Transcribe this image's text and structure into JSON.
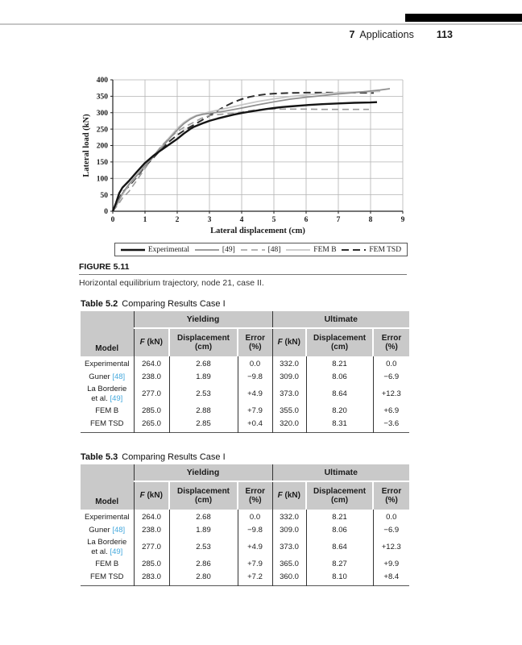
{
  "running_head": {
    "chapter_number": "7",
    "chapter_title": "Applications",
    "page_number": "113"
  },
  "colors": {
    "citation_link": "#45a9dd",
    "table_header_bg": "#c9c9c9",
    "grid_line": "#b3b3b3",
    "axis_line": "#222222"
  },
  "figure": {
    "label": "FIGURE 5.11",
    "caption": "Horizontal equilibrium trajectory, node 21, case II."
  },
  "chart_data": {
    "type": "line",
    "title": "",
    "xlabel": "Lateral displacement (cm)",
    "ylabel": "Lateral load (kN)",
    "xlim": [
      0,
      9
    ],
    "ylim": [
      0,
      400
    ],
    "xticks": [
      0,
      1,
      2,
      3,
      4,
      5,
      6,
      7,
      8,
      9
    ],
    "yticks": [
      0,
      50,
      100,
      150,
      200,
      250,
      300,
      350,
      400
    ],
    "grid": true,
    "legend_position": "bottom",
    "series": [
      {
        "name": "Experimental",
        "color": "#141414",
        "width": 2.4,
        "dash": null,
        "points": [
          [
            0,
            0
          ],
          [
            0.1,
            25
          ],
          [
            0.2,
            55
          ],
          [
            0.3,
            72
          ],
          [
            0.5,
            92
          ],
          [
            0.75,
            120
          ],
          [
            1,
            147
          ],
          [
            1.25,
            168
          ],
          [
            1.5,
            186
          ],
          [
            1.75,
            203
          ],
          [
            2,
            220
          ],
          [
            2.2,
            236
          ],
          [
            2.4,
            250
          ],
          [
            2.5,
            256
          ],
          [
            2.6,
            260
          ],
          [
            2.8,
            268
          ],
          [
            3,
            275
          ],
          [
            3.25,
            282
          ],
          [
            3.5,
            288
          ],
          [
            3.75,
            294
          ],
          [
            4,
            299
          ],
          [
            4.25,
            303
          ],
          [
            4.5,
            307
          ],
          [
            4.75,
            311
          ],
          [
            5,
            314
          ],
          [
            5.25,
            317
          ],
          [
            5.5,
            319
          ],
          [
            6,
            323
          ],
          [
            6.5,
            326
          ],
          [
            7,
            328
          ],
          [
            7.5,
            330
          ],
          [
            8,
            331
          ],
          [
            8.2,
            332
          ]
        ]
      },
      {
        "name": "[49]",
        "color": "#8f8f8f",
        "width": 1.7,
        "dash": null,
        "points": [
          [
            0,
            0
          ],
          [
            0.1,
            15
          ],
          [
            0.3,
            55
          ],
          [
            0.5,
            82
          ],
          [
            0.75,
            110
          ],
          [
            1,
            138
          ],
          [
            1.25,
            165
          ],
          [
            1.5,
            192
          ],
          [
            1.75,
            220
          ],
          [
            2,
            247
          ],
          [
            2.2,
            266
          ],
          [
            2.4,
            280
          ],
          [
            2.6,
            290
          ],
          [
            2.8,
            295
          ],
          [
            3,
            298
          ],
          [
            3.25,
            301
          ],
          [
            3.5,
            305
          ],
          [
            4,
            314
          ],
          [
            4.5,
            324
          ],
          [
            5,
            333
          ],
          [
            5.5,
            341
          ],
          [
            6,
            347
          ],
          [
            6.5,
            352
          ],
          [
            7,
            357
          ],
          [
            7.5,
            361
          ],
          [
            8,
            366
          ],
          [
            8.3,
            369
          ],
          [
            8.6,
            373
          ]
        ]
      },
      {
        "name": "[48]",
        "color": "#9c9c9c",
        "width": 1.6,
        "dash": "8,5",
        "points": [
          [
            0,
            0
          ],
          [
            0.15,
            18
          ],
          [
            0.3,
            40
          ],
          [
            0.5,
            60
          ],
          [
            0.75,
            95
          ],
          [
            1,
            130
          ],
          [
            1.25,
            165
          ],
          [
            1.5,
            198
          ],
          [
            1.75,
            222
          ],
          [
            2,
            242
          ],
          [
            2.25,
            258
          ],
          [
            2.5,
            270
          ],
          [
            2.75,
            283
          ],
          [
            3,
            291
          ],
          [
            3.25,
            294
          ],
          [
            3.5,
            296
          ],
          [
            4,
            302
          ],
          [
            4.25,
            306
          ],
          [
            4.5,
            309
          ],
          [
            4.75,
            311
          ],
          [
            5,
            311
          ],
          [
            5.5,
            311
          ],
          [
            6,
            311
          ],
          [
            6.5,
            310
          ],
          [
            7,
            310
          ],
          [
            7.5,
            310
          ],
          [
            7.95,
            310
          ]
        ]
      },
      {
        "name": "FEM B",
        "color": "#c6c6c6",
        "width": 1.8,
        "dash": null,
        "points": [
          [
            0,
            0
          ],
          [
            0.2,
            35
          ],
          [
            0.5,
            80
          ],
          [
            0.75,
            108
          ],
          [
            1,
            140
          ],
          [
            1.25,
            168
          ],
          [
            1.5,
            196
          ],
          [
            1.75,
            224
          ],
          [
            2,
            252
          ],
          [
            2.2,
            270
          ],
          [
            2.4,
            283
          ],
          [
            2.6,
            292
          ],
          [
            2.8,
            297
          ],
          [
            3,
            302
          ],
          [
            3.5,
            313
          ],
          [
            4,
            324
          ],
          [
            4.5,
            334
          ],
          [
            5,
            342
          ],
          [
            5.5,
            349
          ],
          [
            6,
            354
          ],
          [
            6.5,
            358
          ],
          [
            7,
            361
          ],
          [
            7.5,
            363
          ],
          [
            8,
            364
          ],
          [
            8.3,
            365
          ]
        ]
      },
      {
        "name": "FEM TSD",
        "color": "#2e2e2e",
        "width": 2,
        "dash": "9,5",
        "points": [
          [
            0,
            0
          ],
          [
            0.15,
            30
          ],
          [
            0.3,
            58
          ],
          [
            0.5,
            76
          ],
          [
            0.75,
            105
          ],
          [
            1,
            136
          ],
          [
            1.25,
            162
          ],
          [
            1.5,
            188
          ],
          [
            1.75,
            212
          ],
          [
            2,
            232
          ],
          [
            2.25,
            248
          ],
          [
            2.5,
            262
          ],
          [
            2.75,
            276
          ],
          [
            3,
            291
          ],
          [
            3.25,
            306
          ],
          [
            3.5,
            320
          ],
          [
            3.75,
            332
          ],
          [
            4,
            341
          ],
          [
            4.25,
            348
          ],
          [
            4.5,
            353
          ],
          [
            4.75,
            356
          ],
          [
            5,
            358
          ],
          [
            5.5,
            360
          ],
          [
            6,
            361
          ],
          [
            6.5,
            361
          ],
          [
            7,
            361
          ],
          [
            7.5,
            361
          ],
          [
            8.1,
            360
          ]
        ]
      }
    ]
  },
  "tables": [
    {
      "title_bold": "Table 5.2",
      "title_rest": "Comparing Results Case I",
      "headers": {
        "model": "Model",
        "group1": "Yielding",
        "group2": "Ultimate",
        "f_italic": "F",
        "f_unit": " (kN)",
        "disp": "Displacement (cm)",
        "err": "Error (%)"
      },
      "rows": [
        {
          "model": [
            {
              "t": "Experimental"
            }
          ],
          "values": [
            "264.0",
            "2.68",
            "0.0",
            "332.0",
            "8.21",
            "0.0"
          ]
        },
        {
          "model": [
            {
              "t": "Guner "
            },
            {
              "t": "[48]",
              "ref": true
            }
          ],
          "values": [
            "238.0",
            "1.89",
            "−9.8",
            "309.0",
            "8.06",
            "−6.9"
          ]
        },
        {
          "model": [
            {
              "t": "La Borderie"
            },
            {
              "br": true
            },
            {
              "t": "et al. "
            },
            {
              "t": "[49]",
              "ref": true
            }
          ],
          "values": [
            "277.0",
            "2.53",
            "+4.9",
            "373.0",
            "8.64",
            "+12.3"
          ]
        },
        {
          "model": [
            {
              "t": "FEM B"
            }
          ],
          "values": [
            "285.0",
            "2.88",
            "+7.9",
            "355.0",
            "8.20",
            "+6.9"
          ]
        },
        {
          "model": [
            {
              "t": "FEM TSD"
            }
          ],
          "values": [
            "265.0",
            "2.85",
            "+0.4",
            "320.0",
            "8.31",
            "−3.6"
          ]
        }
      ]
    },
    {
      "title_bold": "Table 5.3",
      "title_rest": "Comparing Results Case I",
      "headers": {
        "model": "Model",
        "group1": "Yielding",
        "group2": "Ultimate",
        "f_italic": "F",
        "f_unit": " (kN)",
        "disp": "Displacement (cm)",
        "err": "Error (%)"
      },
      "rows": [
        {
          "model": [
            {
              "t": "Experimental"
            }
          ],
          "values": [
            "264.0",
            "2.68",
            "0.0",
            "332.0",
            "8.21",
            "0.0"
          ]
        },
        {
          "model": [
            {
              "t": "Guner "
            },
            {
              "t": "[48]",
              "ref": true
            }
          ],
          "values": [
            "238.0",
            "1.89",
            "−9.8",
            "309.0",
            "8.06",
            "−6.9"
          ]
        },
        {
          "model": [
            {
              "t": "La Borderie"
            },
            {
              "br": true
            },
            {
              "t": "et al. "
            },
            {
              "t": "[49]",
              "ref": true
            }
          ],
          "values": [
            "277.0",
            "2.53",
            "+4.9",
            "373.0",
            "8.64",
            "+12.3"
          ]
        },
        {
          "model": [
            {
              "t": "FEM B"
            }
          ],
          "values": [
            "285.0",
            "2.86",
            "+7.9",
            "365.0",
            "8.27",
            "+9.9"
          ]
        },
        {
          "model": [
            {
              "t": "FEM TSD"
            }
          ],
          "values": [
            "283.0",
            "2.80",
            "+7.2",
            "360.0",
            "8.10",
            "+8.4"
          ]
        }
      ]
    }
  ]
}
